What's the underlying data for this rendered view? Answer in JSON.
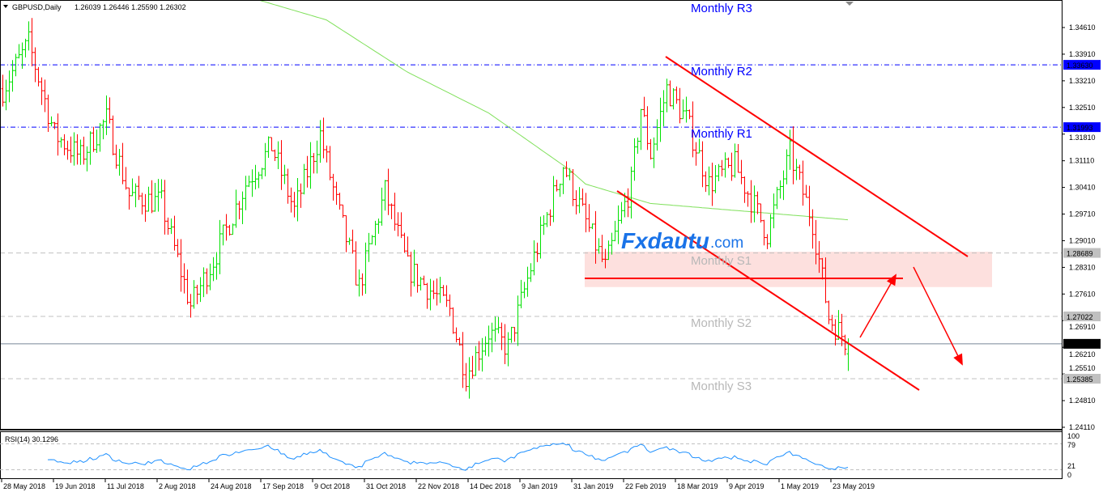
{
  "header": {
    "symbol_info": "GBPUSD,Daily",
    "ohlc": "1.26039 1.26446 1.25590 1.26302"
  },
  "watermark": {
    "brand": "Fxdautu",
    "suffix": ".com",
    "color": "#1a73e8"
  },
  "colors": {
    "bull": "#00e000",
    "bear": "#ff0000",
    "ma": "#7fe05a",
    "rsi": "#1e90ff",
    "pivot_r": "#0000ff",
    "pivot_s": "#c0c0c0",
    "trend": "#ff0000",
    "zone": "#fde0de"
  },
  "levels": [
    {
      "name": "Monthly R3",
      "label_color": "#0000ff"
    },
    {
      "name": "Monthly R2",
      "price": 1.3363,
      "tag": "1.33630",
      "style": "blue dash-dot"
    },
    {
      "name": "Monthly R1",
      "price": 1.31993,
      "tag": "1.31993",
      "style": "blue dash-dot"
    },
    {
      "name": "Monthly S1",
      "price": 1.28689,
      "tag": "1.28689",
      "style": "grey dashed"
    },
    {
      "name": "Monthly S2",
      "price": 1.27022,
      "tag": "1.27022",
      "style": "grey dashed"
    },
    {
      "name": "Monthly S3",
      "price": 1.25385,
      "tag": "1.25385",
      "style": "grey dashed"
    }
  ],
  "current_price": {
    "price": 1.26302,
    "tag": "1.26302"
  },
  "chart_data": {
    "type": "candlestick",
    "symbol": "GBPUSD",
    "timeframe": "Daily",
    "price_ticks": [
      "1.34610",
      "1.33910",
      "1.33210",
      "1.32510",
      "1.31810",
      "1.31110",
      "1.30410",
      "1.29710",
      "1.29010",
      "1.28310",
      "1.27610",
      "1.26910",
      "1.26210",
      "1.25510",
      "1.24810",
      "1.24110"
    ],
    "ylim": [
      1.2411,
      1.3461
    ],
    "date_ticks": [
      "28 May 2018",
      "19 Jun 2018",
      "11 Jul 2018",
      "2 Aug 2018",
      "24 Aug 2018",
      "17 Sep 2018",
      "9 Oct 2018",
      "31 Oct 2018",
      "22 Nov 2018",
      "14 Dec 2018",
      "9 Jan 2019",
      "31 Jan 2019",
      "22 Feb 2019",
      "18 Mar 2019",
      "9 Apr 2019",
      "1 May 2019",
      "23 May 2019"
    ],
    "close_path": [
      [
        "2018-05-28",
        1.33
      ],
      [
        "2018-06-07",
        1.342
      ],
      [
        "2018-06-19",
        1.318
      ],
      [
        "2018-06-29",
        1.312
      ],
      [
        "2018-07-11",
        1.322
      ],
      [
        "2018-07-20",
        1.302
      ],
      [
        "2018-08-03",
        1.3
      ],
      [
        "2018-08-16",
        1.273
      ],
      [
        "2018-08-27",
        1.285
      ],
      [
        "2018-09-10",
        1.305
      ],
      [
        "2018-09-20",
        1.315
      ],
      [
        "2018-10-01",
        1.298
      ],
      [
        "2018-10-11",
        1.318
      ],
      [
        "2018-10-18",
        1.3
      ],
      [
        "2018-10-29",
        1.278
      ],
      [
        "2018-11-08",
        1.303
      ],
      [
        "2018-11-19",
        1.283
      ],
      [
        "2018-12-06",
        1.272
      ],
      [
        "2018-12-13",
        1.255
      ],
      [
        "2018-12-24",
        1.266
      ],
      [
        "2019-01-01",
        1.262
      ],
      [
        "2019-01-10",
        1.283
      ],
      [
        "2019-01-24",
        1.31
      ],
      [
        "2019-02-04",
        1.295
      ],
      [
        "2019-02-12",
        1.283
      ],
      [
        "2019-02-22",
        1.305
      ],
      [
        "2019-02-27",
        1.325
      ],
      [
        "2019-03-04",
        1.313
      ],
      [
        "2019-03-11",
        1.33
      ],
      [
        "2019-03-19",
        1.322
      ],
      [
        "2019-03-28",
        1.305
      ],
      [
        "2019-04-09",
        1.31
      ],
      [
        "2019-04-23",
        1.292
      ],
      [
        "2019-05-02",
        1.313
      ],
      [
        "2019-05-13",
        1.295
      ],
      [
        "2019-05-20",
        1.27
      ],
      [
        "2019-05-28",
        1.263
      ]
    ],
    "moving_average": [
      [
        "2018-09-13",
        1.3536
      ],
      [
        "2018-10-15",
        1.3481
      ],
      [
        "2018-11-19",
        1.3344
      ],
      [
        "2018-12-24",
        1.3237
      ],
      [
        "2019-01-28",
        1.3088
      ],
      [
        "2019-02-04",
        1.305
      ],
      [
        "2019-03-04",
        1.2999
      ],
      [
        "2019-05-28",
        1.2956
      ]
    ],
    "rsi": {
      "label": "RSI(14) 30.1296",
      "levels": [
        "100",
        "79",
        "21",
        "0"
      ],
      "range": [
        0,
        100
      ]
    }
  }
}
